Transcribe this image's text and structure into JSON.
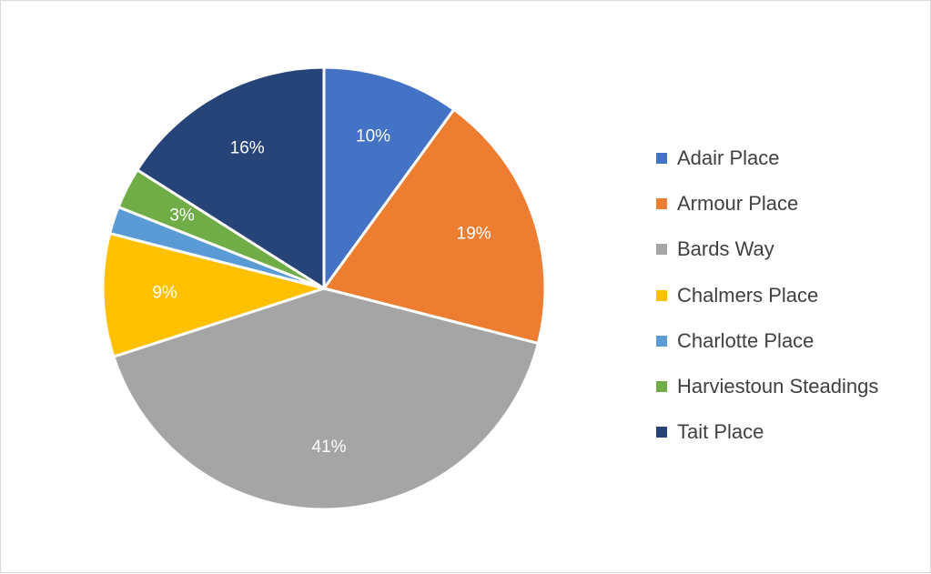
{
  "chart_data": {
    "type": "pie",
    "categories": [
      "Adair Place",
      "Armour Place",
      "Bards Way",
      "Chalmers Place",
      "Charlotte Place",
      "Harviestoun Steadings",
      "Tait Place"
    ],
    "values": [
      10,
      19,
      41,
      9,
      2,
      3,
      16
    ],
    "labels": [
      "10%",
      "19%",
      "41%",
      "9%",
      "",
      "3%",
      "16%"
    ],
    "colors": [
      "#4472c4",
      "#ed7d31",
      "#a5a5a5",
      "#ffc000",
      "#5b9bd5",
      "#70ad47",
      "#264478"
    ],
    "label_color": "#ffffff",
    "start_angle_deg": 0,
    "direction": "clockwise",
    "legend_position": "right"
  }
}
